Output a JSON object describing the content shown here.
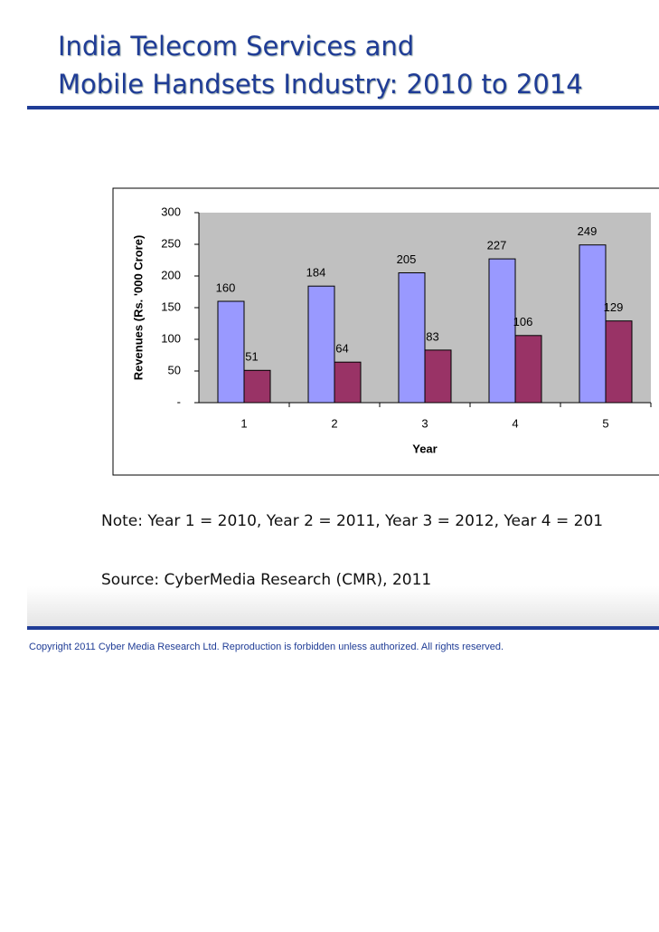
{
  "slide": {
    "title_lines": [
      "India Telecom Services and",
      "Mobile Handsets Industry: 2010 to 2014"
    ],
    "note": "Note: Year 1 = 2010, Year 2 = 2011, Year 3 = 2012, Year 4 = 201",
    "source": "Source: CyberMedia Research (CMR), 2011",
    "copyright": "Copyright 2011 Cyber Media Research Ltd. Reproduction is forbidden unless authorized. All rights reserved."
  },
  "chart_data": {
    "type": "bar",
    "x_label": "Year",
    "y_label": "Revenues (Rs. '000 Crore)",
    "categories": [
      "1",
      "2",
      "3",
      "4",
      "5"
    ],
    "series": [
      {
        "color": "#9999ff",
        "values": [
          160,
          184,
          205,
          227,
          249
        ]
      },
      {
        "color": "#993366",
        "values": [
          51,
          64,
          83,
          106,
          129
        ]
      }
    ],
    "ylim": [
      0,
      300
    ],
    "yticks": [
      {
        "value": 0,
        "label": "-"
      },
      50,
      100,
      150,
      200,
      250,
      300
    ],
    "plot_background": "#c0c0c0"
  }
}
